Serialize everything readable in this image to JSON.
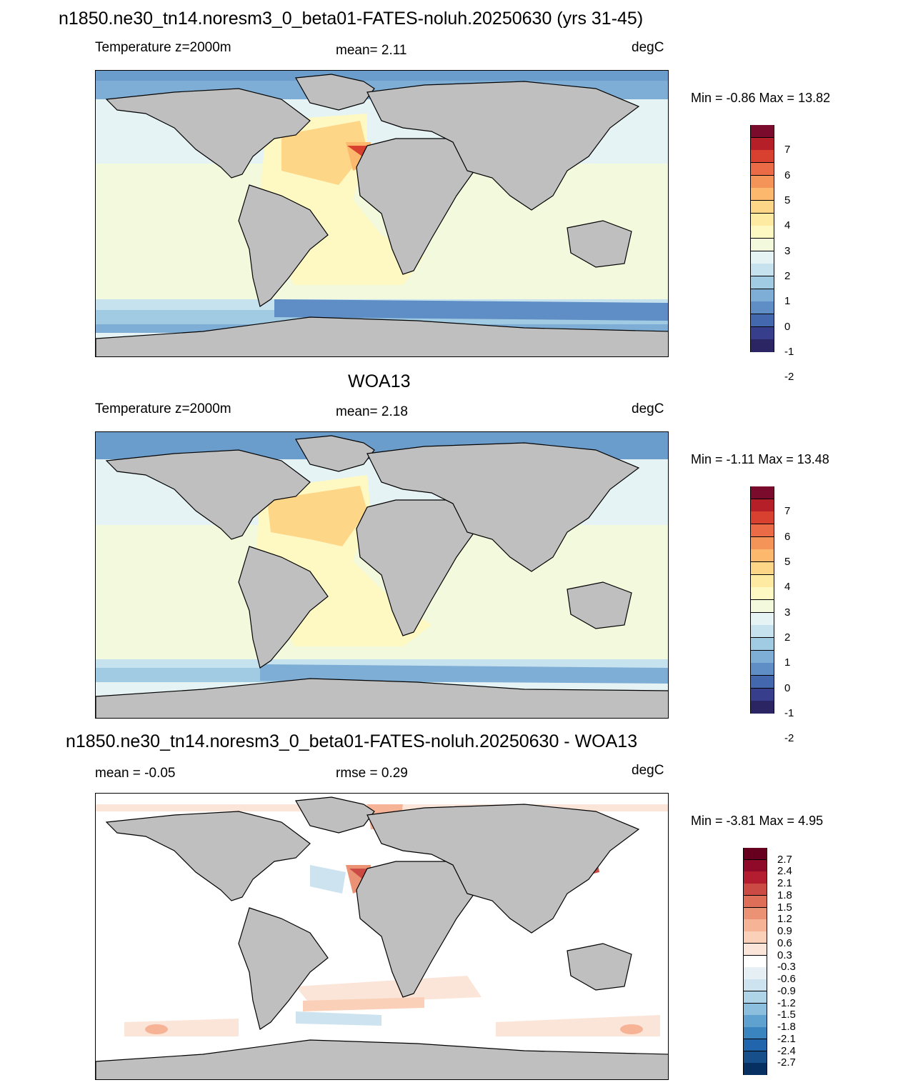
{
  "page_title": "n1850.ne30_tn14.noresm3_0_beta01-FATES-noluh.20250630 (yrs 31-45)",
  "panels": [
    {
      "title": "",
      "left_label": "Temperature z=2000m",
      "stat": "mean=   2.11",
      "units": "degC",
      "minmax": "Min =  -0.86 Max =  13.82",
      "colorbar": {
        "colors": [
          "#2b2564",
          "#373f8c",
          "#4468ae",
          "#5f8dc5",
          "#7eaed5",
          "#a1cbe3",
          "#c6e2ee",
          "#e6f3f5",
          "#f3f9dc",
          "#fef9c2",
          "#feeaa0",
          "#fdd688",
          "#fcb96e",
          "#f59459",
          "#ea6b45",
          "#d8402f",
          "#b52028",
          "#7a0b2c"
        ],
        "labels": [
          "7",
          "6",
          "5",
          "4",
          "3",
          "2",
          "1",
          "0",
          "-1",
          "-2"
        ]
      }
    },
    {
      "title": "WOA13",
      "left_label": "Temperature z=2000m",
      "stat": "mean=   2.18",
      "units": "degC",
      "minmax": "Min =  -1.11 Max =  13.48",
      "colorbar": {
        "colors": [
          "#2b2564",
          "#373f8c",
          "#4468ae",
          "#5f8dc5",
          "#7eaed5",
          "#a1cbe3",
          "#c6e2ee",
          "#e6f3f5",
          "#f3f9dc",
          "#fef9c2",
          "#feeaa0",
          "#fdd688",
          "#fcb96e",
          "#f59459",
          "#ea6b45",
          "#d8402f",
          "#b52028",
          "#7a0b2c"
        ],
        "labels": [
          "7",
          "6",
          "5",
          "4",
          "3",
          "2",
          "1",
          "0",
          "-1",
          "-2"
        ]
      }
    },
    {
      "title": "n1850.ne30_tn14.noresm3_0_beta01-FATES-noluh.20250630 - WOA13",
      "left_label": "mean =  -0.05",
      "stat": "rmse =   0.29",
      "units": "degC",
      "minmax": "Min =  -3.81 Max =   4.95",
      "colorbar": {
        "colors": [
          "#053061",
          "#164f8a",
          "#2166ac",
          "#3a85c0",
          "#5fa2cf",
          "#8cbfdd",
          "#afd3e7",
          "#cde3ef",
          "#e6eff4",
          "#ffffff",
          "#fbe5d8",
          "#fbd0b9",
          "#f6b396",
          "#ec9274",
          "#de6e58",
          "#cb4b44",
          "#b31d2f",
          "#8e0a28",
          "#67001f"
        ],
        "labels": [
          "2.7",
          "2.4",
          "2.1",
          "1.8",
          "1.5",
          "1.2",
          "0.9",
          "0.6",
          "0.3",
          "-0.3",
          "-0.6",
          "-0.9",
          "-1.2",
          "-1.5",
          "-1.8",
          "-2.1",
          "-2.4",
          "-2.7"
        ]
      }
    }
  ]
}
